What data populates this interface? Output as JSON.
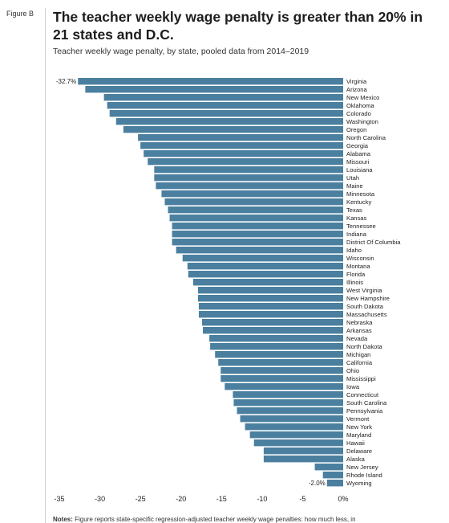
{
  "figure_label": "Figure B",
  "title": "The teacher weekly wage penalty is greater than 20% in 21 states and D.C.",
  "subtitle": "Teacher weekly wage penalty, by state, pooled data from 2014–2019",
  "notes_label": "Notes:",
  "notes_text": "Figure reports state-specific regression-adjusted teacher weekly wage penalties: how much less, in",
  "colors": {
    "bar": "#4b7f9f",
    "text": "#222222"
  },
  "chart_data": {
    "type": "bar",
    "orientation": "horizontal",
    "xlim": [
      -37,
      0
    ],
    "xticks": [
      -35,
      -30,
      -25,
      -20,
      -15,
      -10,
      -5,
      0
    ],
    "xtick_labels": [
      "-35",
      "-30",
      "-25",
      "-20",
      "-15",
      "-10",
      "-5",
      "0%"
    ],
    "data_labels": [
      {
        "category": "Virginia",
        "text": "-32.7%"
      },
      {
        "category": "Wyoming",
        "text": "-2.0%"
      }
    ],
    "categories": [
      "Virginia",
      "Arizona",
      "New Mexico",
      "Oklahoma",
      "Colorado",
      "Washington",
      "Oregon",
      "North Carolina",
      "Georgia",
      "Alabama",
      "Missouri",
      "Louisiana",
      "Utah",
      "Maine",
      "Minnesota",
      "Kentucky",
      "Texas",
      "Kansas",
      "Tennessee",
      "Indiana",
      "District Of Columbia",
      "Idaho",
      "Wisconsin",
      "Montana",
      "Florida",
      "Illinois",
      "West Virginia",
      "New Hampshire",
      "South Dakota",
      "Massachusetts",
      "Nebraska",
      "Arkansas",
      "Nevada",
      "North Dakota",
      "Michigan",
      "California",
      "Ohio",
      "Mississippi",
      "Iowa",
      "Connecticut",
      "South Carolina",
      "Pennsylvania",
      "Vermont",
      "New York",
      "Maryland",
      "Hawaii",
      "Delaware",
      "Alaska",
      "New Jersey",
      "Rhode Island",
      "Wyoming"
    ],
    "values": [
      -32.7,
      -31.8,
      -29.5,
      -29.1,
      -28.8,
      -28.0,
      -27.1,
      -25.3,
      -25.0,
      -24.6,
      -24.1,
      -23.3,
      -23.3,
      -23.1,
      -22.4,
      -22.0,
      -21.6,
      -21.4,
      -21.1,
      -21.1,
      -21.1,
      -20.6,
      -19.8,
      -19.2,
      -19.1,
      -18.5,
      -17.9,
      -17.9,
      -17.8,
      -17.8,
      -17.4,
      -17.3,
      -16.5,
      -16.4,
      -15.8,
      -15.4,
      -15.1,
      -15.1,
      -14.6,
      -13.6,
      -13.5,
      -13.1,
      -12.7,
      -12.1,
      -11.5,
      -11.0,
      -9.8,
      -9.8,
      -3.5,
      -2.5,
      -2.0
    ]
  }
}
